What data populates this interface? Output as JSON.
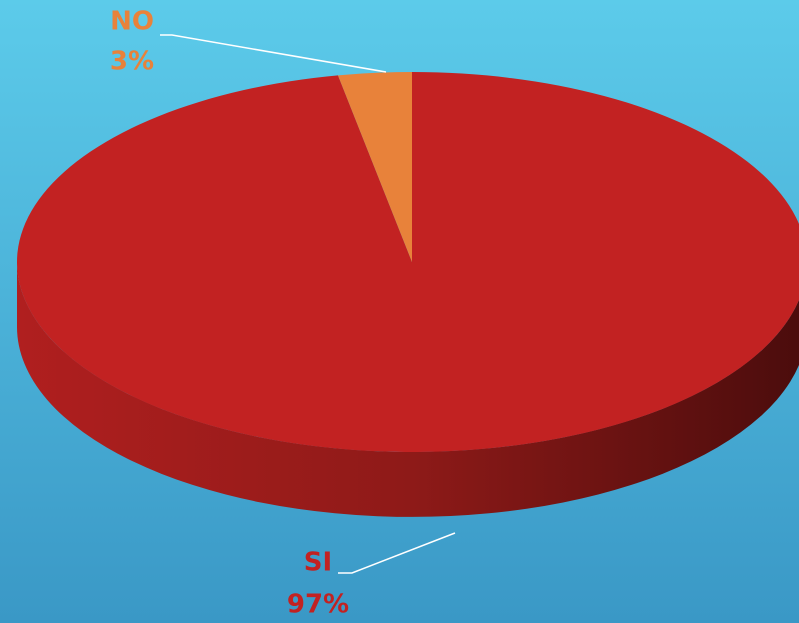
{
  "chart_data": {
    "type": "pie",
    "categories": [
      "SI",
      "NO"
    ],
    "values": [
      97,
      3
    ],
    "value_labels": [
      "97%",
      "3%"
    ],
    "colors": [
      "#c22222",
      "#e8823a"
    ]
  }
}
